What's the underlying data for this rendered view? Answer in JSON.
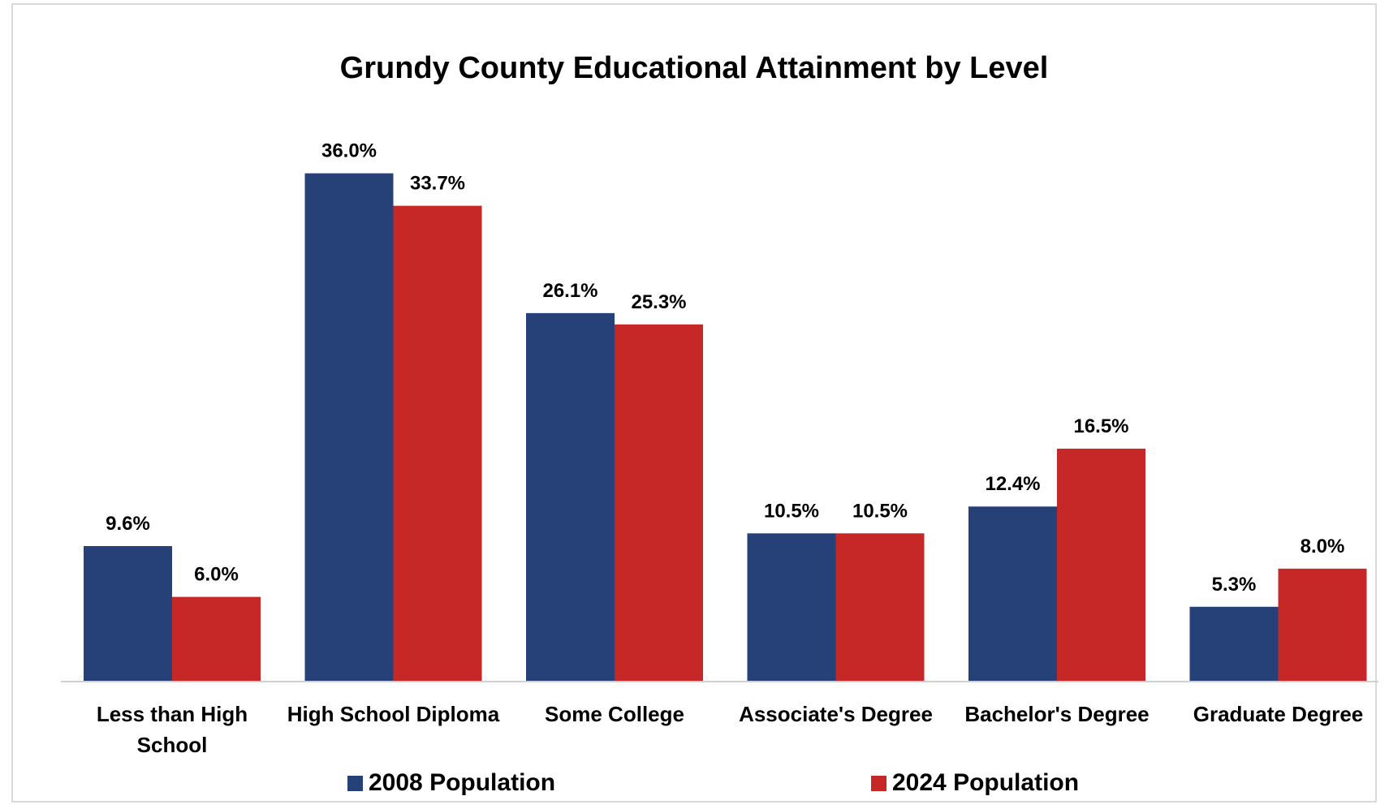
{
  "chart_data": {
    "type": "bar",
    "title": "Grundy County Educational Attainment by Level",
    "categories": [
      [
        "Less than High",
        "School"
      ],
      [
        "High School Diploma"
      ],
      [
        "Some College"
      ],
      [
        "Associate's Degree"
      ],
      [
        "Bachelor's Degree"
      ],
      [
        "Graduate Degree"
      ]
    ],
    "series": [
      {
        "name": "2008 Population",
        "color": "#264177",
        "values": [
          9.6,
          36.0,
          26.1,
          10.5,
          12.4,
          5.3
        ],
        "labels": [
          "9.6%",
          "36.0%",
          "26.1%",
          "10.5%",
          "12.4%",
          "5.3%"
        ]
      },
      {
        "name": "2024 Population",
        "color": "#c62828",
        "values": [
          6.0,
          33.7,
          25.3,
          10.5,
          16.5,
          8.0
        ],
        "labels": [
          "6.0%",
          "33.7%",
          "25.3%",
          "10.5%",
          "16.5%",
          "8.0%"
        ]
      }
    ],
    "ylim": [
      0,
      36
    ],
    "grid": false,
    "legend_position": "bottom",
    "xlabel": "",
    "ylabel": ""
  }
}
